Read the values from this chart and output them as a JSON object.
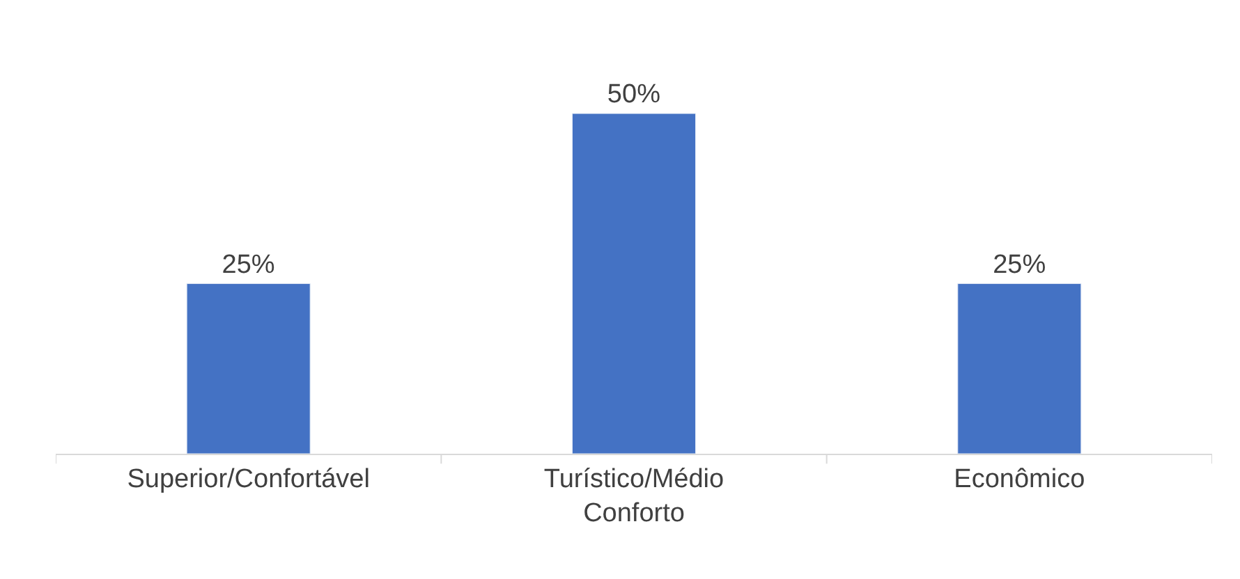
{
  "chart_data": {
    "type": "bar",
    "categories": [
      "Superior/Confortável",
      "Turístico/Médio Conforto",
      "Econômico"
    ],
    "values": [
      25,
      50,
      25
    ],
    "value_labels": [
      "25%",
      "50%",
      "25%"
    ],
    "color": "#4472c4"
  }
}
